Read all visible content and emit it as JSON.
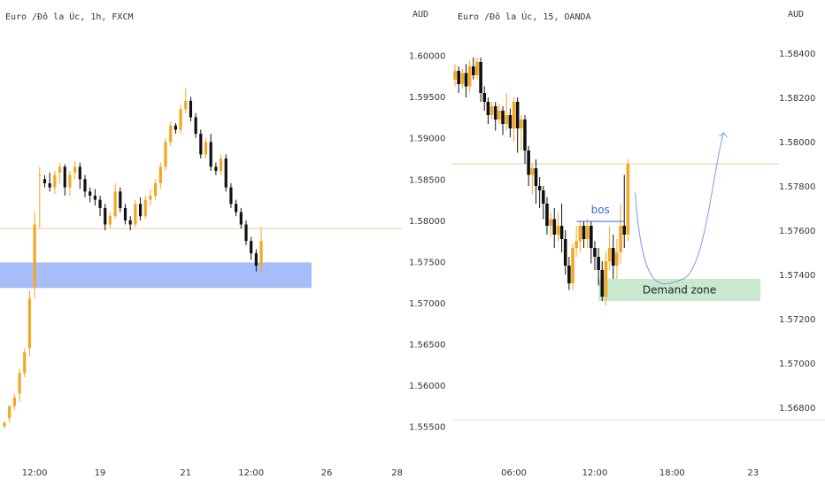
{
  "colors": {
    "up": "#f5a623",
    "down": "#111111",
    "zone_left": "#a7bdf9",
    "zone_right": "#c8e9cd",
    "price_line": "#f5c79a",
    "arrow": "#7a9be8",
    "bos": "#3d63d9"
  },
  "charts": [
    {
      "id": "left",
      "title": "Euro /Đô la Úc, 1h, FXCM",
      "unit": "AUD",
      "ylim": [
        1.5525,
        1.6035
      ],
      "y_ticks": [
        1.6,
        1.595,
        1.59,
        1.585,
        1.58,
        1.575,
        1.57,
        1.565,
        1.56,
        1.555
      ],
      "y_tick_labels": [
        "1.60000",
        "1.59500",
        "1.59000",
        "1.58500",
        "1.58000",
        "1.57500",
        "1.57000",
        "1.56500",
        "1.56000",
        "1.55500"
      ],
      "x_ticks": [
        {
          "label": "12:00",
          "index": 6
        },
        {
          "label": "19",
          "index": 19
        },
        {
          "label": "21",
          "index": 36
        },
        {
          "label": "12:00",
          "index": 49
        },
        {
          "label": "26",
          "index": 64
        },
        {
          "label": "28",
          "index": 78
        }
      ],
      "slots": 80,
      "last_price": 1.579,
      "zone": {
        "top": 1.5749,
        "bottom": 1.5718,
        "from_index": 0,
        "to_index": 61
      },
      "closes": [
        1.5555,
        1.5575,
        1.5585,
        1.5615,
        1.564,
        1.5705,
        1.5795,
        1.5855,
        1.5845,
        1.584,
        1.5855,
        1.5865,
        1.584,
        1.5855,
        1.5865,
        1.585,
        1.5835,
        1.583,
        1.5825,
        1.5815,
        1.5795,
        1.5805,
        1.5835,
        1.5815,
        1.58,
        1.5795,
        1.582,
        1.5805,
        1.5825,
        1.583,
        1.5845,
        1.5865,
        1.5895,
        1.5915,
        1.591,
        1.5935,
        1.5945,
        1.5925,
        1.5905,
        1.588,
        1.5895,
        1.5865,
        1.586,
        1.5875,
        1.584,
        1.582,
        1.581,
        1.5795,
        1.5775,
        1.576,
        1.5745,
        1.5775
      ],
      "wicks": [
        [
          1.555,
          1.555,
          1.5548
        ],
        [
          1.556,
          1.5555,
          1.557
        ],
        [
          1.5575,
          1.557,
          1.559
        ],
        [
          1.559,
          1.558,
          1.562
        ],
        [
          1.5615,
          1.561,
          1.5645
        ],
        [
          1.5645,
          1.5635,
          1.5715
        ],
        [
          1.572,
          1.5705,
          1.581
        ],
        [
          1.5855,
          1.579,
          1.5865
        ],
        [
          1.585,
          1.584,
          1.5855
        ],
        [
          1.5845,
          1.5835,
          1.5858
        ],
        [
          1.584,
          1.5832,
          1.586
        ],
        [
          1.5858,
          1.5845,
          1.587
        ],
        [
          1.5865,
          1.583,
          1.5868
        ],
        [
          1.584,
          1.583,
          1.586
        ],
        [
          1.5858,
          1.585,
          1.5872
        ],
        [
          1.5865,
          1.5838,
          1.587
        ],
        [
          1.585,
          1.5828,
          1.5855
        ],
        [
          1.5835,
          1.5822,
          1.584
        ],
        [
          1.583,
          1.5818,
          1.5838
        ],
        [
          1.5825,
          1.5805,
          1.583
        ],
        [
          1.5815,
          1.5788,
          1.582
        ],
        [
          1.5795,
          1.579,
          1.581
        ],
        [
          1.5805,
          1.5802,
          1.5845
        ],
        [
          1.5835,
          1.581,
          1.584
        ],
        [
          1.5815,
          1.5795,
          1.582
        ],
        [
          1.58,
          1.5788,
          1.5805
        ],
        [
          1.5795,
          1.5792,
          1.5825
        ],
        [
          1.582,
          1.58,
          1.5828
        ],
        [
          1.5805,
          1.5802,
          1.583
        ],
        [
          1.5825,
          1.5818,
          1.5838
        ],
        [
          1.583,
          1.5825,
          1.585
        ],
        [
          1.5845,
          1.5838,
          1.587
        ],
        [
          1.5865,
          1.586,
          1.59
        ],
        [
          1.5895,
          1.589,
          1.592
        ],
        [
          1.5915,
          1.5905,
          1.5918
        ],
        [
          1.591,
          1.5905,
          1.594
        ],
        [
          1.5935,
          1.593,
          1.596
        ],
        [
          1.5945,
          1.592,
          1.595
        ],
        [
          1.5925,
          1.59,
          1.593
        ],
        [
          1.5905,
          1.5875,
          1.591
        ],
        [
          1.588,
          1.5875,
          1.59
        ],
        [
          1.5895,
          1.586,
          1.5905
        ],
        [
          1.5865,
          1.5855,
          1.587
        ],
        [
          1.586,
          1.5855,
          1.588
        ],
        [
          1.5875,
          1.5835,
          1.588
        ],
        [
          1.584,
          1.5815,
          1.5845
        ],
        [
          1.582,
          1.5805,
          1.5825
        ],
        [
          1.581,
          1.579,
          1.5815
        ],
        [
          1.5795,
          1.577,
          1.58
        ],
        [
          1.5775,
          1.5752,
          1.578
        ],
        [
          1.576,
          1.5738,
          1.5765
        ],
        [
          1.5745,
          1.5735,
          1.5792
        ]
      ]
    },
    {
      "id": "right",
      "title": "Euro /Đô la Úc, 15, OANDA",
      "unit": "AUD",
      "ylim": [
        1.5662,
        1.5852
      ],
      "y_ticks": [
        1.584,
        1.582,
        1.58,
        1.578,
        1.576,
        1.574,
        1.572,
        1.57,
        1.568
      ],
      "y_tick_labels": [
        "1.58400",
        "1.58200",
        "1.58000",
        "1.57800",
        "1.57600",
        "1.57400",
        "1.57200",
        "1.57000",
        "1.56800"
      ],
      "x_ticks": [
        {
          "label": "06:00",
          "index": 16
        },
        {
          "label": "12:00",
          "index": 38
        },
        {
          "label": "18:00",
          "index": 59
        },
        {
          "label": "23",
          "index": 81
        }
      ],
      "slots": 89,
      "last_price": 1.579,
      "bos_label": "bos",
      "bos_level": 1.5764,
      "zone_label": "Demand zone",
      "zone": {
        "top": 1.5738,
        "bottom": 1.5728,
        "from_index": 39,
        "to_index": 83
      },
      "candles": [
        [
          1.5828,
          1.5832,
          1.5825,
          1.5835
        ],
        [
          1.5832,
          1.5826,
          1.5822,
          1.5834
        ],
        [
          1.5826,
          1.5831,
          1.5824,
          1.5833
        ],
        [
          1.5831,
          1.5825,
          1.582,
          1.5835
        ],
        [
          1.5825,
          1.5834,
          1.5822,
          1.5837
        ],
        [
          1.5834,
          1.583,
          1.5828,
          1.5838
        ],
        [
          1.583,
          1.5836,
          1.5828,
          1.5838
        ],
        [
          1.5836,
          1.5822,
          1.5818,
          1.5838
        ],
        [
          1.5822,
          1.5818,
          1.5814,
          1.5825
        ],
        [
          1.5818,
          1.5812,
          1.5808,
          1.582
        ],
        [
          1.5812,
          1.5816,
          1.581,
          1.5818
        ],
        [
          1.5816,
          1.581,
          1.5805,
          1.5818
        ],
        [
          1.581,
          1.5814,
          1.5808,
          1.5817
        ],
        [
          1.5814,
          1.5808,
          1.5803,
          1.5816
        ],
        [
          1.5808,
          1.5812,
          1.5805,
          1.5822
        ],
        [
          1.5812,
          1.5806,
          1.5802,
          1.5815
        ],
        [
          1.5806,
          1.5818,
          1.58,
          1.582
        ],
        [
          1.5818,
          1.5806,
          1.5795,
          1.582
        ],
        [
          1.5806,
          1.581,
          1.5796,
          1.5812
        ],
        [
          1.581,
          1.5796,
          1.579,
          1.5812
        ],
        [
          1.5796,
          1.5785,
          1.578,
          1.5798
        ],
        [
          1.5785,
          1.5788,
          1.5776,
          1.579
        ],
        [
          1.5788,
          1.578,
          1.5772,
          1.5792
        ],
        [
          1.578,
          1.5778,
          1.577,
          1.5784
        ],
        [
          1.5778,
          1.5772,
          1.5765,
          1.578
        ],
        [
          1.5772,
          1.5762,
          1.5758,
          1.5775
        ],
        [
          1.5762,
          1.5765,
          1.5757,
          1.5768
        ],
        [
          1.5765,
          1.5758,
          1.5752,
          1.577
        ],
        [
          1.5758,
          1.5762,
          1.5755,
          1.5768
        ],
        [
          1.5762,
          1.5756,
          1.575,
          1.5772
        ],
        [
          1.5756,
          1.5744,
          1.574,
          1.576
        ],
        [
          1.5744,
          1.5736,
          1.5733,
          1.5748
        ],
        [
          1.5736,
          1.5752,
          1.5733,
          1.5754
        ],
        [
          1.5752,
          1.5755,
          1.5748,
          1.5762
        ],
        [
          1.5755,
          1.5762,
          1.575,
          1.5764
        ],
        [
          1.5762,
          1.5756,
          1.5752,
          1.5764
        ],
        [
          1.5756,
          1.5762,
          1.5752,
          1.5765
        ],
        [
          1.5762,
          1.5752,
          1.5745,
          1.5764
        ],
        [
          1.5752,
          1.5748,
          1.5742,
          1.5755
        ],
        [
          1.5748,
          1.5742,
          1.5735,
          1.5752
        ],
        [
          1.5742,
          1.573,
          1.5728,
          1.5746
        ],
        [
          1.573,
          1.5746,
          1.5726,
          1.575
        ],
        [
          1.5746,
          1.5752,
          1.5742,
          1.5762
        ],
        [
          1.5752,
          1.5744,
          1.5738,
          1.5758
        ],
        [
          1.5744,
          1.575,
          1.5738,
          1.5756
        ],
        [
          1.575,
          1.5762,
          1.5745,
          1.5772
        ],
        [
          1.5762,
          1.5758,
          1.5752,
          1.5785
        ],
        [
          1.5758,
          1.579,
          1.5755,
          1.5792
        ]
      ],
      "projection": [
        [
          49,
          1.5777
        ],
        [
          62,
          1.5738
        ],
        [
          73,
          1.5804
        ]
      ]
    }
  ]
}
